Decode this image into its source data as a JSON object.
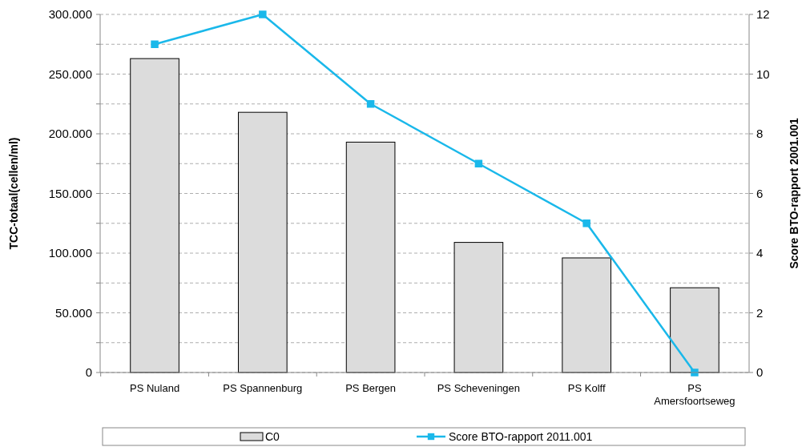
{
  "chart_data": {
    "type": "bar",
    "categories": [
      "PS Nuland",
      "PS Spannenburg",
      "PS Bergen",
      "PS Scheveningen",
      "PS Kolff",
      "PS Amersfoortseweg"
    ],
    "series": [
      {
        "name": "C0",
        "color": "#dcdcdc",
        "values": [
          263000,
          218000,
          193000,
          109000,
          96000,
          71000
        ]
      },
      {
        "name": "Score BTO-rapport 2011.001",
        "type": "line",
        "axis": "y2",
        "color": "#1ab8ea",
        "values": [
          11,
          12,
          9,
          7,
          5,
          0
        ]
      }
    ],
    "ylabel": "TCC-totaal(cellen/ml)",
    "y2label": "Score BTO-rapport 2001.001",
    "ylim": [
      0,
      300000
    ],
    "yticks": [
      {
        "value": 0,
        "label": "0"
      },
      {
        "value": 25000,
        "label": null
      },
      {
        "value": 50000,
        "label": "50.000"
      },
      {
        "value": 75000,
        "label": null
      },
      {
        "value": 100000,
        "label": "100.000"
      },
      {
        "value": 125000,
        "label": null
      },
      {
        "value": 150000,
        "label": "150.000"
      },
      {
        "value": 175000,
        "label": null
      },
      {
        "value": 200000,
        "label": "200.000"
      },
      {
        "value": 225000,
        "label": null
      },
      {
        "value": 250000,
        "label": "250.000"
      },
      {
        "value": 275000,
        "label": null
      },
      {
        "value": 300000,
        "label": "300.000"
      }
    ],
    "y2lim": [
      0,
      12
    ],
    "y2ticks": [
      0,
      2,
      4,
      6,
      8,
      10,
      12
    ],
    "grid": "y",
    "legend": "bottom",
    "marker": "square",
    "line_style": "solid"
  }
}
